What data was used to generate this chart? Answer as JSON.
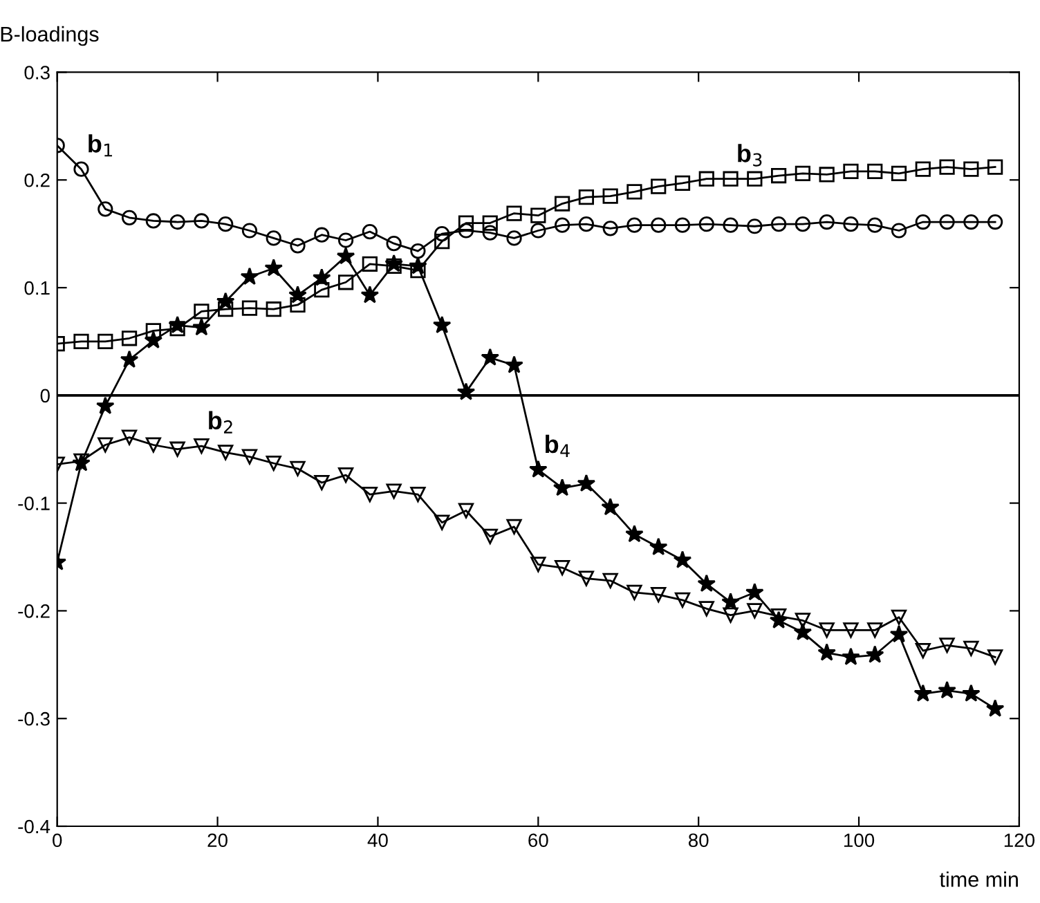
{
  "chart_data": {
    "type": "line",
    "xlabel": "time min",
    "ylabel": "B-loadings",
    "x": [
      0,
      3,
      6,
      9,
      12,
      15,
      18,
      21,
      24,
      27,
      30,
      33,
      36,
      39,
      42,
      45,
      48,
      51,
      54,
      57,
      60,
      63,
      66,
      69,
      72,
      75,
      78,
      81,
      84,
      87,
      90,
      93,
      96,
      99,
      102,
      105,
      108,
      111,
      114,
      117
    ],
    "series": [
      {
        "color": "#000000",
        "marker": "circle",
        "values": [
          0.232,
          0.21,
          0.173,
          0.165,
          0.162,
          0.161,
          0.162,
          0.159,
          0.153,
          0.146,
          0.139,
          0.149,
          0.144,
          0.152,
          0.141,
          0.134,
          0.15,
          0.153,
          0.151,
          0.146,
          0.153,
          0.158,
          0.159,
          0.155,
          0.158,
          0.158,
          0.158,
          0.159,
          0.158,
          0.157,
          0.159,
          0.159,
          0.161,
          0.159,
          0.158,
          0.153,
          0.161,
          0.161,
          0.161,
          0.161
        ]
      },
      {
        "color": "#000000",
        "marker": "triangle",
        "values": [
          -0.064,
          -0.061,
          -0.046,
          -0.039,
          -0.046,
          -0.05,
          -0.047,
          -0.053,
          -0.057,
          -0.063,
          -0.068,
          -0.081,
          -0.074,
          -0.092,
          -0.089,
          -0.092,
          -0.118,
          -0.107,
          -0.131,
          -0.122,
          -0.157,
          -0.16,
          -0.17,
          -0.172,
          -0.183,
          -0.185,
          -0.19,
          -0.198,
          -0.204,
          -0.2,
          -0.205,
          -0.209,
          -0.218,
          -0.218,
          -0.218,
          -0.206,
          -0.237,
          -0.232,
          -0.235,
          -0.243
        ]
      },
      {
        "color": "#000000",
        "marker": "square",
        "values": [
          0.048,
          0.05,
          0.05,
          0.053,
          0.06,
          0.062,
          0.078,
          0.08,
          0.081,
          0.08,
          0.084,
          0.098,
          0.105,
          0.122,
          0.12,
          0.116,
          0.143,
          0.16,
          0.16,
          0.169,
          0.167,
          0.178,
          0.184,
          0.185,
          0.189,
          0.194,
          0.197,
          0.201,
          0.201,
          0.201,
          0.204,
          0.206,
          0.205,
          0.208,
          0.208,
          0.206,
          0.21,
          0.212,
          0.21,
          0.212
        ]
      },
      {
        "color": "#000000",
        "marker": "star",
        "values": [
          -0.155,
          -0.063,
          -0.01,
          0.033,
          0.051,
          0.065,
          0.063,
          0.087,
          0.11,
          0.118,
          0.093,
          0.109,
          0.129,
          0.093,
          0.122,
          0.12,
          0.065,
          0.003,
          0.035,
          0.028,
          -0.069,
          -0.086,
          -0.082,
          -0.104,
          -0.129,
          -0.141,
          -0.153,
          -0.175,
          -0.192,
          -0.183,
          -0.209,
          -0.22,
          -0.239,
          -0.243,
          -0.241,
          -0.222,
          -0.277,
          -0.274,
          -0.277,
          -0.291
        ]
      }
    ],
    "annotations": [
      {
        "text": "b$_{1}$",
        "x": 3,
        "y": 0.21
      },
      {
        "text": "b$_{2}$",
        "x": 18,
        "y": -0.047
      },
      {
        "text": "b$_{3}$",
        "x": 84,
        "y": 0.201
      },
      {
        "text": "b$_{4}$",
        "x": 60,
        "y": -0.069
      }
    ],
    "ref_lines": [
      {
        "axis": "y",
        "value": 0,
        "color": "#000000"
      }
    ],
    "xlim": [
      0,
      120
    ],
    "ylim": [
      -0.4,
      0.3
    ],
    "xticks": [
      0,
      20,
      40,
      60,
      80,
      100,
      120
    ],
    "yticks": [
      -0.4,
      -0.3,
      -0.2,
      -0.1,
      0,
      0.1,
      0.2,
      0.3
    ],
    "grid": false,
    "legend": false,
    "line_style": "solid"
  }
}
